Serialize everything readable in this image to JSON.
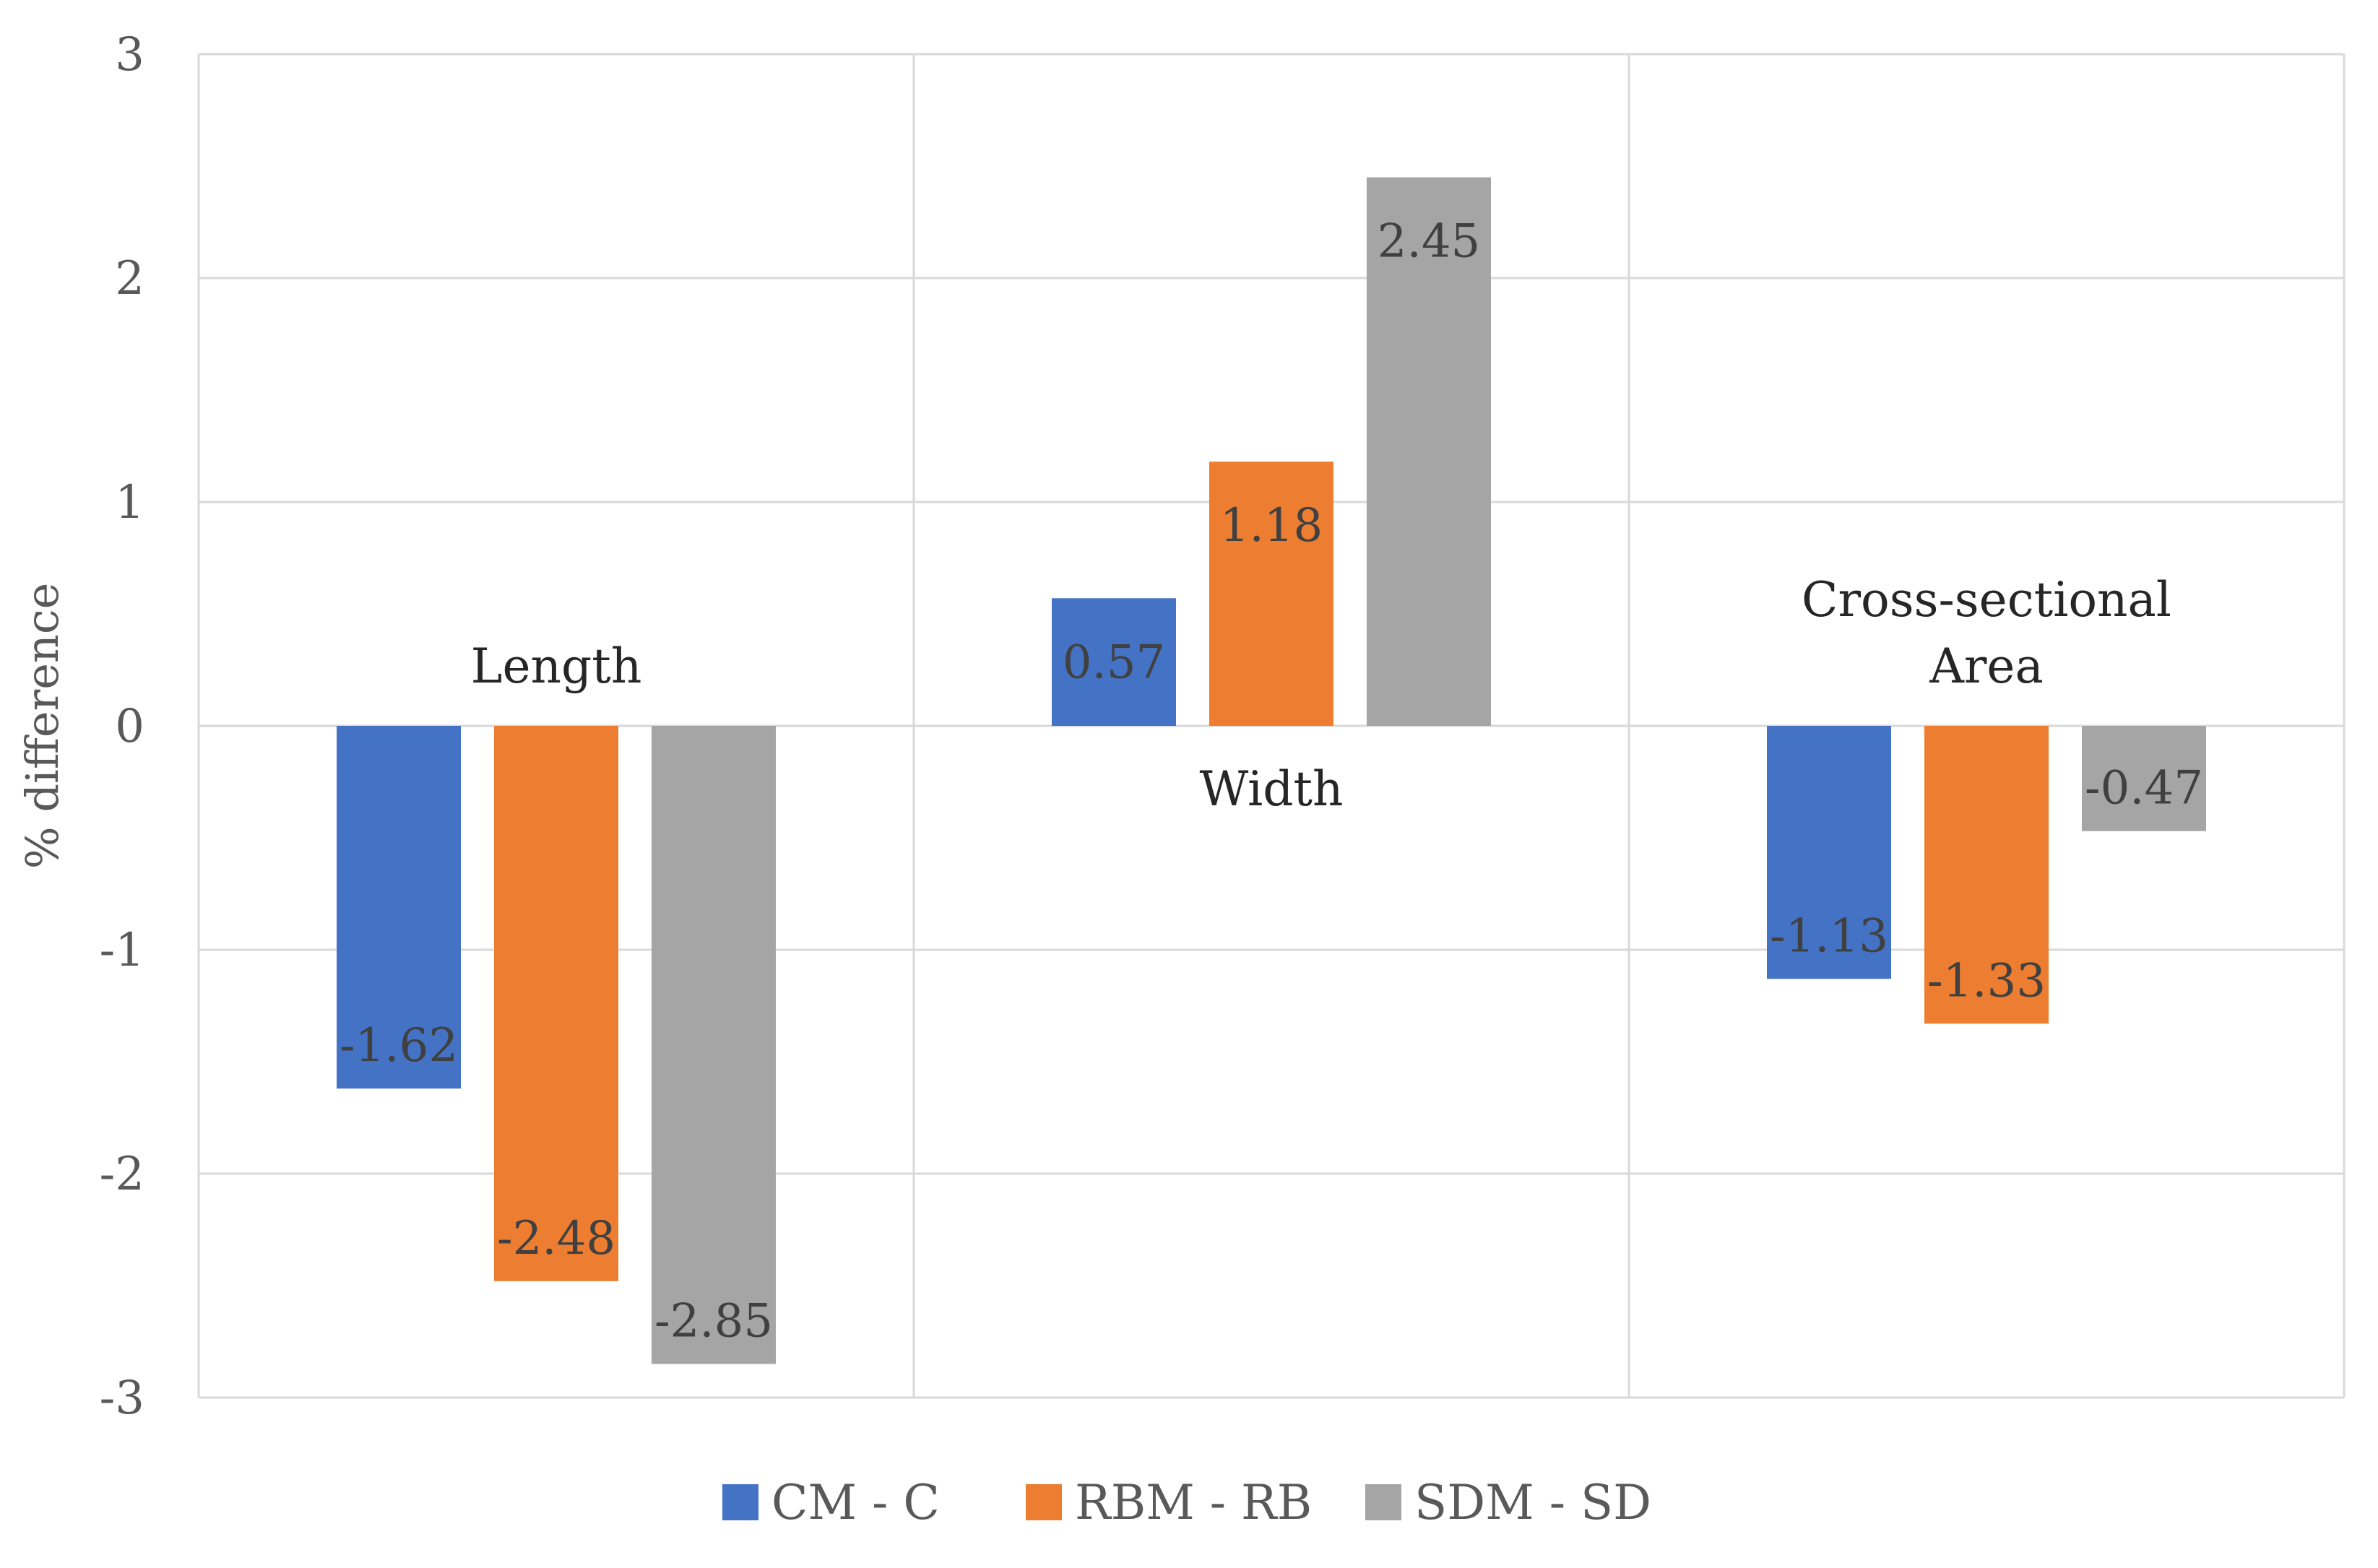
{
  "chart_data": {
    "type": "bar",
    "categories": [
      "Length",
      "Width",
      "Cross-sectional Area"
    ],
    "category_label_lines": [
      [
        "Length"
      ],
      [
        "Width"
      ],
      [
        "Cross-sectional",
        "Area"
      ]
    ],
    "series": [
      {
        "name": "CM - C",
        "color": "#4472C4",
        "values": [
          -1.62,
          0.57,
          -1.13
        ]
      },
      {
        "name": "RBM - RB",
        "color": "#ED7D31",
        "values": [
          -2.48,
          1.18,
          -1.33
        ]
      },
      {
        "name": "SDM - SD",
        "color": "#A5A5A5",
        "values": [
          -2.85,
          2.45,
          -0.47
        ]
      }
    ],
    "data_labels": [
      [
        "-1.62",
        "0.57",
        "-1.13"
      ],
      [
        "-2.48",
        "1.18",
        "-1.33"
      ],
      [
        "-2.85",
        "2.45",
        "-0.47"
      ]
    ],
    "yticks": [
      3,
      2,
      1,
      0,
      -1,
      -2,
      -3
    ],
    "ylim": [
      -3,
      3
    ],
    "ylabel": "% difference",
    "xlabel": "",
    "title": "",
    "grid": true,
    "legend_position": "bottom"
  }
}
